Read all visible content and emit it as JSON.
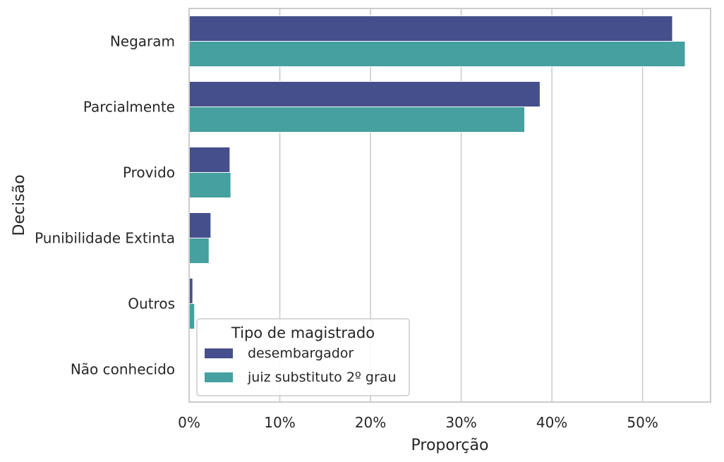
{
  "chart_data": {
    "type": "bar",
    "orientation": "horizontal",
    "categories": [
      "Negaram",
      "Parcialmente",
      "Provido",
      "Punibilidade Extinta",
      "Outros",
      "Não conhecido"
    ],
    "series": [
      {
        "name": "desembargador",
        "values": [
          53.3,
          38.7,
          4.5,
          2.4,
          0.4,
          0.0
        ],
        "color": "#454f8c"
      },
      {
        "name": "juiz substituto 2º grau",
        "values": [
          54.7,
          37.0,
          4.6,
          2.2,
          0.6,
          0.0
        ],
        "color": "#46a0a0"
      }
    ],
    "xlabel": "Proporção",
    "ylabel": "Decisão",
    "xlim": [
      0,
      57.5
    ],
    "xticks": [
      0,
      10,
      20,
      30,
      40,
      50
    ],
    "xtick_labels": [
      "0%",
      "10%",
      "20%",
      "30%",
      "40%",
      "50%"
    ],
    "grid": "vertical",
    "legend": {
      "title": "Tipo de magistrado",
      "placement": "lower-left"
    }
  }
}
